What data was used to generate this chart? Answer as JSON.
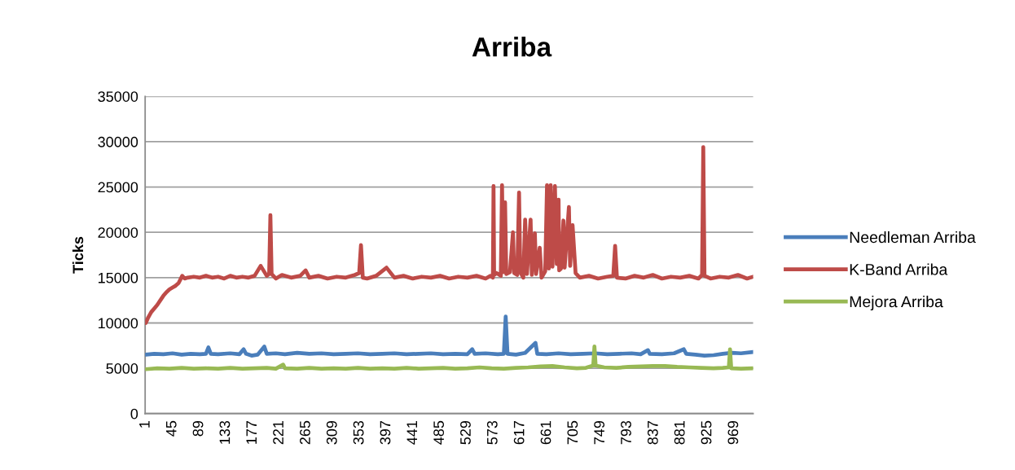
{
  "chart_data": {
    "type": "line",
    "title": "Arriba",
    "ylabel": "Ticks",
    "xlim": [
      0,
      1000
    ],
    "xticks": [
      1,
      45,
      89,
      133,
      177,
      221,
      265,
      309,
      353,
      397,
      441,
      485,
      529,
      573,
      617,
      661,
      705,
      749,
      793,
      837,
      881,
      925,
      969
    ],
    "ylim": [
      0,
      35000
    ],
    "yticks": [
      0,
      5000,
      10000,
      15000,
      20000,
      25000,
      30000,
      35000
    ],
    "grid": "y",
    "legend": "right",
    "marker": "none",
    "line_style": "solid",
    "series": [
      {
        "name": "Needleman Arriba",
        "color": "#4a7ebb",
        "x": [
          1,
          15,
          30,
          45,
          60,
          75,
          90,
          100,
          104,
          108,
          120,
          140,
          155,
          162,
          166,
          175,
          185,
          196,
          200,
          215,
          230,
          250,
          270,
          290,
          310,
          330,
          350,
          370,
          390,
          410,
          430,
          450,
          470,
          490,
          510,
          530,
          538,
          542,
          560,
          580,
          590,
          593,
          596,
          610,
          625,
          642,
          645,
          660,
          680,
          700,
          720,
          740,
          760,
          780,
          800,
          815,
          827,
          830,
          850,
          870,
          886,
          890,
          905,
          920,
          935,
          950,
          965,
          980,
          1000
        ],
        "values": [
          6500,
          6600,
          6550,
          6650,
          6500,
          6600,
          6550,
          6600,
          7300,
          6600,
          6550,
          6650,
          6550,
          7100,
          6600,
          6400,
          6500,
          7400,
          6600,
          6650,
          6550,
          6700,
          6600,
          6650,
          6550,
          6600,
          6650,
          6550,
          6600,
          6650,
          6550,
          6600,
          6650,
          6550,
          6600,
          6550,
          7100,
          6600,
          6650,
          6550,
          6600,
          10700,
          6600,
          6500,
          6700,
          7800,
          6600,
          6550,
          6650,
          6550,
          6600,
          6650,
          6550,
          6600,
          6650,
          6550,
          7000,
          6600,
          6550,
          6650,
          7100,
          6600,
          6500,
          6400,
          6450,
          6600,
          6700,
          6650,
          6800
        ]
      },
      {
        "name": "K-Band Arriba",
        "color": "#be4b48",
        "x": [
          1,
          5,
          10,
          15,
          20,
          25,
          30,
          35,
          40,
          45,
          50,
          55,
          61,
          65,
          70,
          80,
          90,
          100,
          110,
          120,
          130,
          140,
          150,
          160,
          170,
          180,
          190,
          200,
          204,
          206,
          208,
          215,
          225,
          240,
          255,
          264,
          270,
          285,
          300,
          315,
          330,
          345,
          352,
          355,
          358,
          365,
          380,
          397,
          410,
          425,
          440,
          455,
          470,
          485,
          500,
          515,
          530,
          545,
          560,
          568,
          572,
          573,
          574,
          578,
          585,
          587,
          589,
          592,
          594,
          600,
          605,
          607,
          612,
          615,
          617,
          622,
          625,
          628,
          634,
          636,
          641,
          643,
          649,
          652,
          658,
          661,
          664,
          667,
          670,
          674,
          677,
          680,
          681,
          684,
          688,
          690,
          697,
          699,
          703,
          708,
          715,
          730,
          745,
          760,
          770,
          773,
          776,
          790,
          805,
          820,
          835,
          850,
          865,
          880,
          895,
          910,
          916,
          918,
          920,
          930,
          945,
          960,
          975,
          990,
          1000
        ],
        "values": [
          10000,
          10600,
          11200,
          11600,
          12000,
          12500,
          13000,
          13400,
          13700,
          13900,
          14100,
          14400,
          15200,
          14900,
          15000,
          15100,
          15000,
          15200,
          15000,
          15100,
          14900,
          15200,
          15000,
          15100,
          15000,
          15200,
          16300,
          15200,
          15400,
          21900,
          15400,
          14900,
          15300,
          15000,
          15200,
          15800,
          15000,
          15200,
          14900,
          15100,
          15000,
          15300,
          15500,
          18600,
          15000,
          14900,
          15200,
          16100,
          15000,
          15200,
          14900,
          15100,
          15000,
          15200,
          14900,
          15100,
          15000,
          15200,
          14900,
          15200,
          15000,
          25100,
          15300,
          15500,
          15200,
          25200,
          15600,
          23300,
          15400,
          15600,
          20000,
          15500,
          15300,
          24400,
          15600,
          15000,
          21400,
          15400,
          21400,
          15300,
          19900,
          15400,
          18300,
          15000,
          15700,
          25200,
          16000,
          25200,
          16200,
          25100,
          16500,
          23600,
          15800,
          16000,
          21300,
          16100,
          22800,
          16300,
          20800,
          15500,
          15000,
          15200,
          14900,
          15100,
          15200,
          18500,
          15000,
          14900,
          15200,
          15000,
          15300,
          14900,
          15100,
          15000,
          15200,
          14900,
          15300,
          29400,
          15200,
          14900,
          15100,
          15000,
          15300,
          14900,
          15100
        ]
      },
      {
        "name": "Mejora Arriba",
        "color": "#98b954",
        "x": [
          1,
          20,
          40,
          60,
          80,
          100,
          120,
          140,
          160,
          180,
          200,
          215,
          227,
          230,
          250,
          270,
          290,
          310,
          330,
          350,
          370,
          390,
          410,
          430,
          450,
          470,
          490,
          510,
          530,
          550,
          570,
          590,
          610,
          630,
          650,
          670,
          690,
          710,
          725,
          737,
          739,
          741,
          755,
          775,
          795,
          815,
          835,
          855,
          875,
          895,
          915,
          935,
          950,
          960,
          962,
          964,
          980,
          1000
        ],
        "values": [
          4900,
          5000,
          4950,
          5050,
          4950,
          5000,
          4950,
          5050,
          4950,
          5000,
          5050,
          4950,
          5400,
          5000,
          4950,
          5050,
          4950,
          5000,
          4950,
          5050,
          4950,
          5000,
          4950,
          5050,
          4950,
          5000,
          5050,
          4950,
          5000,
          5100,
          5000,
          4950,
          5050,
          5100,
          5200,
          5250,
          5100,
          5000,
          5050,
          5300,
          7400,
          5300,
          5100,
          5050,
          5150,
          5200,
          5250,
          5250,
          5150,
          5100,
          5050,
          5000,
          5050,
          5100,
          7100,
          5000,
          4950,
          5000
        ]
      }
    ]
  }
}
